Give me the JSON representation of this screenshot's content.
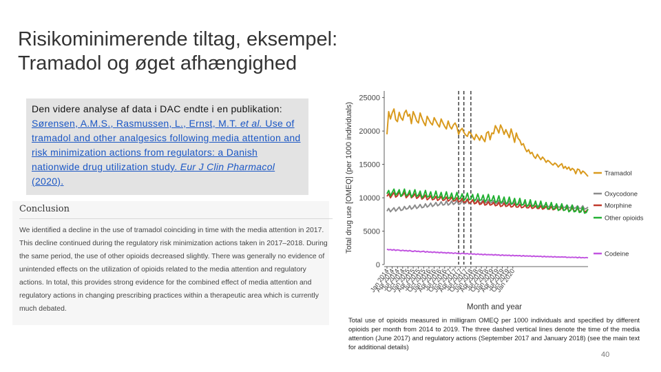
{
  "slide": {
    "title_line1": "Risikominimerende tiltag, eksempel:",
    "title_line2": "Tramadol og øget afhængighed",
    "page_number": "40"
  },
  "reference": {
    "intro": "Den videre analyse af data i DAC endte i en publikation: ",
    "authors_a": "Sørensen, A.M.S., Rasmussen, L., Ernst, M.T. ",
    "etal": "et al.",
    "title": " Use of tramadol and other analgesics following media attention and risk minimization actions from regulators: a Danish nationwide drug utilization study. ",
    "journal": "Eur J Clin Pharmacol",
    "year": " (2020)."
  },
  "conclusion": {
    "heading": "Conclusion",
    "body": "We identified a decline in the use of tramadol coinciding in time with the media attention in 2017. This decline continued during the regulatory risk minimization actions taken in 2017–2018. During the same period, the use of other opioids decreased slightly. There was generally no evidence of unintended effects on the utilization of opioids related to the media attention and regulatory actions. In total, this provides strong evidence for the combined effect of media attention and regulatory actions in changing prescribing practices within a therapeutic area which is currently much debated."
  },
  "caption": "Total use of opioids measured in milligram OMEQ per 1000 individuals and specified by different opioids per month from 2014 to 2019. The three dashed vertical lines denote the time of the media attention (June 2017) and regulatory actions (September 2017 and January 2018) (see the main text for additional details)",
  "chart_data": {
    "type": "line",
    "xlabel": "Month and year",
    "ylabel": "Total drug use [OMEQ] (per 1000 individuals)",
    "ylim": [
      0,
      26000
    ],
    "yticks": [
      0,
      5000,
      10000,
      15000,
      20000,
      25000
    ],
    "x_tick_labels": [
      "Jan 2014",
      "Apr 2014",
      "Jul 2014",
      "Oct 2014",
      "Jan 2015",
      "Apr 2015",
      "Jul 2015",
      "Oct 2015",
      "Jan 2016",
      "Apr 2016",
      "Jul 2016",
      "Oct 2016",
      "Jan 2017",
      "Apr 2017",
      "Jul 2017",
      "Oct 2017",
      "Jan 2018",
      "Apr 2018",
      "Jul 2018",
      "Oct 2018",
      "Jan 2019",
      "Apr 2019",
      "Jul 2019",
      "Oct 2019",
      "Jan 2020"
    ],
    "vlines": [
      "Jun 2017",
      "Sep 2017",
      "Jan 2018"
    ],
    "legend_position": "right",
    "grid": false,
    "series": [
      {
        "name": "Tramadol",
        "color": "#d99a1e",
        "values": [
          19500,
          22900,
          21800,
          22700,
          23300,
          21700,
          21400,
          22800,
          22000,
          21600,
          22700,
          23100,
          22200,
          22500,
          21100,
          22900,
          22300,
          21500,
          21200,
          22700,
          21900,
          21300,
          20800,
          22200,
          21700,
          21200,
          20900,
          22000,
          21500,
          21000,
          20600,
          21800,
          21200,
          20700,
          20300,
          21500,
          20700,
          20300,
          20900,
          21200,
          20600,
          19500,
          20100,
          20400,
          19800,
          19400,
          19200,
          19900,
          19600,
          19100,
          18700,
          19500,
          19100,
          18600,
          19300,
          18800,
          18400,
          19700,
          19900,
          18700,
          19700,
          19600,
          20800,
          20300,
          19700,
          20900,
          20300,
          19500,
          20200,
          19600,
          19000,
          20300,
          19400,
          18300,
          19700,
          18900,
          18600,
          17900,
          18100,
          17400,
          16900,
          17200,
          16600,
          16800,
          16200,
          15900,
          16500,
          16100,
          15700,
          16100,
          15800,
          15300,
          15600,
          15400,
          15100,
          14900,
          15200,
          15000,
          14600,
          14900,
          15100,
          14400,
          14700,
          14300,
          14600,
          14100,
          14400,
          14200,
          13600,
          14300,
          14200,
          13600,
          14000,
          13800,
          13500,
          13200
        ]
      },
      {
        "name": "Oxycodone",
        "color": "#8c8c8c",
        "values": [
          8000,
          8400,
          7900,
          8200,
          8500,
          8000,
          8300,
          8600,
          8100,
          8200,
          8700,
          8300,
          8400,
          8800,
          8300,
          8500,
          8900,
          8400,
          8600,
          9000,
          8500,
          8600,
          9100,
          8600,
          8800,
          9200,
          8700,
          8900,
          9300,
          8800,
          9000,
          9400,
          8900,
          9000,
          9500,
          8900,
          9100,
          9500,
          9000,
          9200,
          9600,
          9000,
          9100,
          9600,
          9100,
          9200,
          9700,
          9100,
          9300,
          9700,
          9200,
          9300,
          9800,
          9200,
          9300,
          9700,
          9200,
          9300,
          9700,
          9200,
          9300,
          9600,
          9100,
          9200,
          9600,
          9100,
          9200,
          9500,
          9000,
          9100,
          9500,
          9000,
          9100,
          9400,
          8900,
          9000,
          9400,
          8900,
          9000,
          9300,
          8800,
          8900,
          9300,
          8800,
          8900,
          9200,
          8800,
          8800,
          9200,
          8700,
          8800,
          9100,
          8700,
          8700,
          9100,
          8600,
          8700,
          9000,
          8600,
          8600,
          9000,
          8500,
          8600,
          8900,
          8500,
          8500,
          8900,
          8400,
          8500,
          8800,
          8400,
          8400,
          8800,
          8300,
          8400,
          8600
        ]
      },
      {
        "name": "Morphine",
        "color": "#c0392b",
        "values": [
          10200,
          10600,
          10000,
          10400,
          10800,
          10100,
          10300,
          10900,
          10200,
          10400,
          10800,
          10000,
          10300,
          10700,
          10000,
          10200,
          10600,
          9900,
          10100,
          10500,
          9800,
          10000,
          10400,
          9700,
          9900,
          10300,
          9700,
          9800,
          10200,
          9600,
          9800,
          10200,
          9600,
          9700,
          10100,
          9500,
          9700,
          10100,
          9500,
          9600,
          10000,
          9400,
          9500,
          9900,
          9300,
          9400,
          9800,
          9200,
          9300,
          9700,
          9100,
          9200,
          9600,
          9000,
          9100,
          9500,
          8900,
          9000,
          9400,
          8900,
          9000,
          9300,
          8800,
          8900,
          9300,
          8700,
          8800,
          9200,
          8700,
          8800,
          9100,
          8600,
          8700,
          9100,
          8600,
          8600,
          9000,
          8500,
          8600,
          8900,
          8500,
          8500,
          8900,
          8400,
          8500,
          8800,
          8400,
          8400,
          8800,
          8300,
          8400,
          8700,
          8300,
          8300,
          8700,
          8200,
          8300,
          8600,
          8200,
          8200,
          8600,
          8100,
          8200,
          8500,
          8100,
          8100,
          8500,
          8000,
          8100,
          8400,
          8000,
          8000,
          8400,
          7900,
          8000,
          8300
        ]
      },
      {
        "name": "Other opioids",
        "color": "#22b033",
        "values": [
          10600,
          11100,
          10300,
          10800,
          11300,
          10400,
          10700,
          11200,
          10200,
          10600,
          11300,
          10300,
          10500,
          11100,
          10100,
          10500,
          11200,
          10200,
          10400,
          11000,
          10000,
          10300,
          11100,
          10100,
          10200,
          10900,
          9900,
          10200,
          11000,
          10000,
          10100,
          10800,
          9800,
          10100,
          10900,
          9900,
          10000,
          10700,
          9700,
          10000,
          10800,
          9800,
          9900,
          10600,
          9600,
          9900,
          10700,
          9700,
          9800,
          10500,
          9500,
          9800,
          10600,
          9600,
          9700,
          10400,
          9400,
          9700,
          10500,
          9500,
          9600,
          10300,
          9300,
          9500,
          10300,
          9300,
          9400,
          10100,
          9100,
          9300,
          10100,
          9100,
          9200,
          9900,
          8900,
          9100,
          9900,
          8900,
          9000,
          9700,
          8700,
          8900,
          9700,
          8700,
          8800,
          9500,
          8500,
          8700,
          9500,
          8500,
          8600,
          9300,
          8300,
          8500,
          9300,
          8300,
          8400,
          9100,
          8100,
          8300,
          9100,
          8100,
          8200,
          8900,
          7900,
          8100,
          8900,
          7900,
          8000,
          8700,
          7800,
          7900,
          8600,
          7700,
          7800,
          8300
        ]
      },
      {
        "name": "Codeine",
        "color": "#c154e0",
        "values": [
          2300,
          2200,
          2250,
          2150,
          2250,
          2100,
          2200,
          2150,
          2050,
          2150,
          2050,
          2100,
          2000,
          2100,
          2000,
          1950,
          2050,
          1950,
          2000,
          1900,
          1950,
          2000,
          1850,
          1950,
          1850,
          1900,
          1800,
          1900,
          1800,
          1850,
          1750,
          1850,
          1750,
          1800,
          1700,
          1800,
          1700,
          1750,
          1650,
          1750,
          1650,
          1700,
          1600,
          1700,
          1650,
          1600,
          1650,
          1550,
          1650,
          1550,
          1600,
          1500,
          1600,
          1500,
          1550,
          1450,
          1550,
          1450,
          1500,
          1450,
          1500,
          1400,
          1500,
          1400,
          1450,
          1350,
          1450,
          1350,
          1400,
          1350,
          1400,
          1300,
          1400,
          1300,
          1350,
          1300,
          1350,
          1250,
          1350,
          1250,
          1300,
          1250,
          1300,
          1200,
          1300,
          1200,
          1250,
          1200,
          1250,
          1150,
          1250,
          1150,
          1200,
          1150,
          1200,
          1100,
          1200,
          1100,
          1150,
          1100,
          1150,
          1100,
          1150,
          1050,
          1100,
          1050,
          1100,
          1050,
          1100,
          1000,
          1100,
          1000,
          1050,
          1000,
          1050,
          1000
        ]
      }
    ]
  }
}
